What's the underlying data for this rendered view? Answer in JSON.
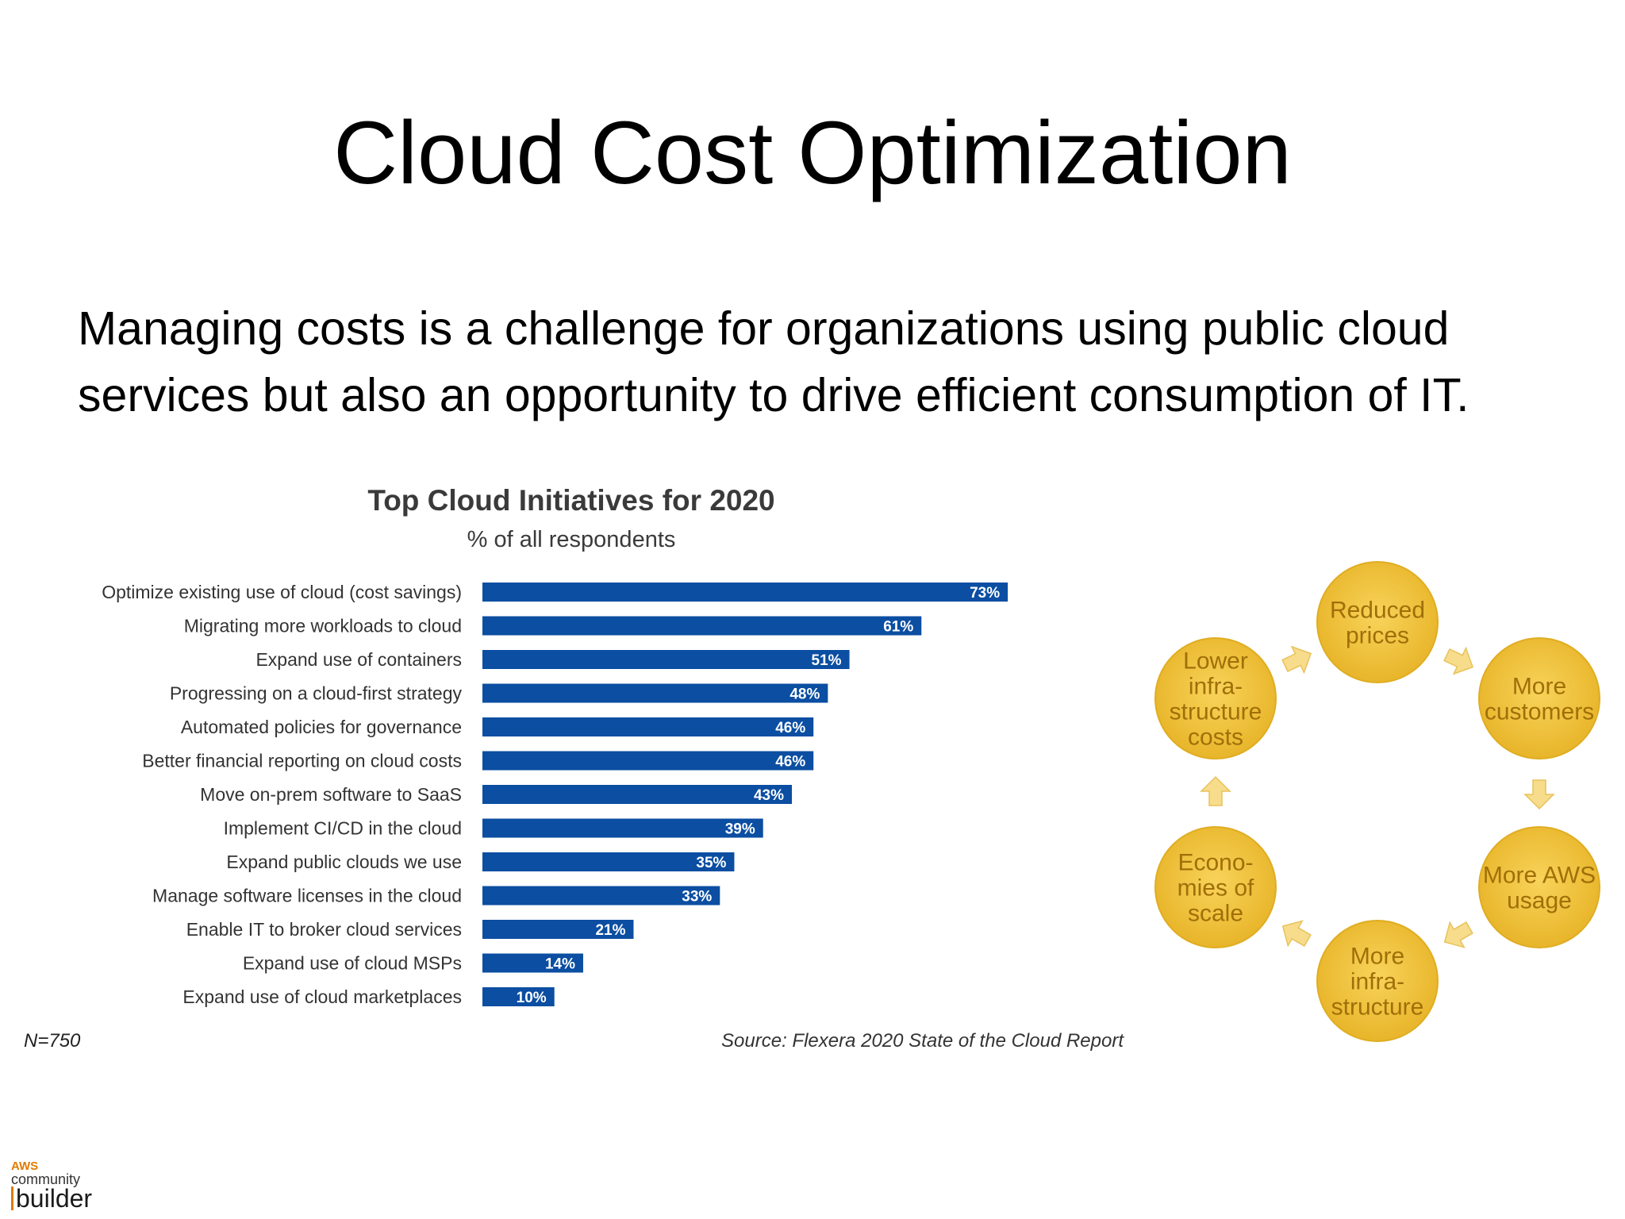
{
  "slide": {
    "title": "Cloud Cost Optimization",
    "subtitle_line1": "Managing costs is a challenge for organizations using public cloud",
    "subtitle_line2": "services but also an opportunity to drive efficient consumption of IT."
  },
  "colors": {
    "bar": "#0b4ea2",
    "circle_fill": "#f2c33b",
    "circle_text": "#a06f08",
    "arrow_fill": "#f7dc8c",
    "logo_accent": "#e07b00"
  },
  "chart_data": {
    "type": "bar",
    "orientation": "horizontal",
    "title": "Top Cloud Initiatives for 2020",
    "subtitle": "% of all respondents",
    "categories": [
      "Optimize existing use of cloud (cost savings)",
      "Migrating more workloads to cloud",
      "Expand use of containers",
      "Progressing on a cloud-first strategy",
      "Automated policies for governance",
      "Better financial reporting on cloud costs",
      "Move on-prem software to SaaS",
      "Implement CI/CD in the cloud",
      "Expand public clouds we use",
      "Manage software licenses in the cloud",
      "Enable IT to broker cloud services",
      "Expand use of cloud MSPs",
      "Expand use of cloud marketplaces"
    ],
    "values": [
      73,
      61,
      51,
      48,
      46,
      46,
      43,
      39,
      35,
      33,
      21,
      14,
      10
    ],
    "value_labels": [
      "73%",
      "61%",
      "51%",
      "48%",
      "46%",
      "46%",
      "43%",
      "39%",
      "35%",
      "33%",
      "21%",
      "14%",
      "10%"
    ],
    "xlim": [
      0,
      100
    ],
    "grid": false,
    "sample_note": "N=750",
    "source": "Source: Flexera 2020 State of the Cloud Report"
  },
  "diagram": {
    "nodes": [
      {
        "lines": [
          "Reduced",
          "prices"
        ]
      },
      {
        "lines": [
          "More",
          "customers"
        ]
      },
      {
        "lines": [
          "More AWS",
          "usage"
        ]
      },
      {
        "lines": [
          "More",
          "infra-",
          "structure"
        ]
      },
      {
        "lines": [
          "Econo-",
          "mies of",
          "scale"
        ]
      },
      {
        "lines": [
          "Lower",
          "infra-",
          "structure",
          "costs"
        ]
      }
    ]
  },
  "logo": {
    "aws": "AWS",
    "community": "community",
    "builder": "builder"
  }
}
